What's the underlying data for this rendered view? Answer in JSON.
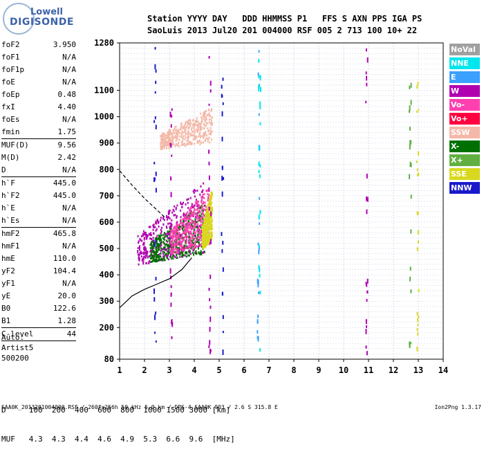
{
  "logo": {
    "line1": "Lowell",
    "line2": "DIGISONDE"
  },
  "header": {
    "row1": "Station YYYY DAY   DDD HHMMSS P1   FFS S AXN PPS IGA PS",
    "row2": "SaoLuis 2013 Jul20 201 004000 RSF 005 2 713 100 10+ 22"
  },
  "params": [
    {
      "block": [
        [
          "foF2",
          "3.950"
        ],
        [
          "foF1",
          "N/A"
        ],
        [
          "foF1p",
          "N/A"
        ],
        [
          "foE",
          "N/A"
        ],
        [
          "foEp",
          "0.48"
        ],
        [
          "fxI",
          "4.40"
        ],
        [
          "foEs",
          "N/A"
        ],
        [
          "fmin",
          "1.75"
        ]
      ]
    },
    {
      "block": [
        [
          "MUF(D)",
          "9.56"
        ],
        [
          "M(D)",
          "2.42"
        ],
        [
          "D",
          "N/A"
        ]
      ]
    },
    {
      "block": [
        [
          "h`F",
          "445.0"
        ],
        [
          "h`F2",
          "445.0"
        ],
        [
          "h`E",
          "N/A"
        ],
        [
          "h`Es",
          "N/A"
        ]
      ]
    },
    {
      "block": [
        [
          "hmF2",
          "465.8"
        ],
        [
          "hmF1",
          "N/A"
        ],
        [
          "hmE",
          "110.0"
        ],
        [
          "yF2",
          "104.4"
        ],
        [
          "yF1",
          "N/A"
        ],
        [
          "yE",
          "20.0"
        ],
        [
          "B0",
          "122.6"
        ],
        [
          "B1",
          "1.28"
        ]
      ]
    },
    {
      "block": [
        [
          "C-level",
          "44"
        ]
      ]
    }
  ],
  "auto": [
    "Auto:",
    "Artist5",
    "500200"
  ],
  "legend": [
    {
      "label": "NoVal",
      "color": "#a0a0a0"
    },
    {
      "label": "NNE",
      "color": "#00e5ee"
    },
    {
      "label": "E",
      "color": "#3ca0ff"
    },
    {
      "label": "W",
      "color": "#b000b0"
    },
    {
      "label": "Vo-",
      "color": "#ff40b0"
    },
    {
      "label": "Vo+",
      "color": "#ff0040"
    },
    {
      "label": "SSW",
      "color": "#f4b8a8"
    },
    {
      "label": "X-",
      "color": "#007000"
    },
    {
      "label": "X+",
      "color": "#60b040"
    },
    {
      "label": "SSE",
      "color": "#d8d820"
    },
    {
      "label": "NNW",
      "color": "#1a1acc"
    }
  ],
  "bottom": {
    "row1": "D     100  200  400  600  800  1000 1500 3000 [km]",
    "row2": "MUF   4.3  4.3  4.4  4.6  4.9  5.3  6.6  9.6  [MHz]"
  },
  "footer": {
    "left": "SAA0K_2013201004000.RSF / 260fx256h 50 kHz 5.0 km / DPS-4 SAA0K 903 / 2.6 S 315.8 E",
    "right": "Ion2Png 1.3.17"
  },
  "chart_data": {
    "type": "scatter",
    "title": "",
    "xlabel": "",
    "ylabel": "",
    "xlim": [
      1,
      14
    ],
    "ylim": [
      80,
      1280
    ],
    "x_ticks": [
      1,
      2,
      3,
      4,
      5,
      6,
      7,
      8,
      9,
      10,
      11,
      12,
      13,
      14
    ],
    "y_ticks": [
      80,
      200,
      300,
      400,
      500,
      600,
      700,
      800,
      900,
      1000,
      1100,
      1280
    ],
    "grid": true,
    "series": [
      {
        "name": "profile",
        "values": [
          [
            1.0,
            275
          ],
          [
            1.5,
            320
          ],
          [
            2.0,
            345
          ],
          [
            2.5,
            365
          ],
          [
            3.0,
            385
          ],
          [
            3.5,
            420
          ],
          [
            3.9,
            465
          ]
        ]
      },
      {
        "name": "dashed",
        "values": [
          [
            1.0,
            795
          ],
          [
            1.5,
            740
          ],
          [
            2.0,
            690
          ],
          [
            2.4,
            655
          ],
          [
            2.8,
            620
          ]
        ]
      }
    ],
    "echo_regions": [
      {
        "color": "#b000b0",
        "fmin": 1.7,
        "fmax": 4.4,
        "hmin": 440,
        "hmax": 760
      },
      {
        "color": "#007000",
        "fmin": 2.2,
        "fmax": 4.4,
        "hmin": 450,
        "hmax": 680
      },
      {
        "color": "#ff40b0",
        "fmin": 3.0,
        "fmax": 4.6,
        "hmin": 480,
        "hmax": 740
      },
      {
        "color": "#f4b8a8",
        "fmin": 2.6,
        "fmax": 4.7,
        "hmin": 880,
        "hmax": 1040
      },
      {
        "color": "#d8d820",
        "fmin": 4.3,
        "fmax": 4.7,
        "hmin": 500,
        "hmax": 740
      }
    ]
  }
}
